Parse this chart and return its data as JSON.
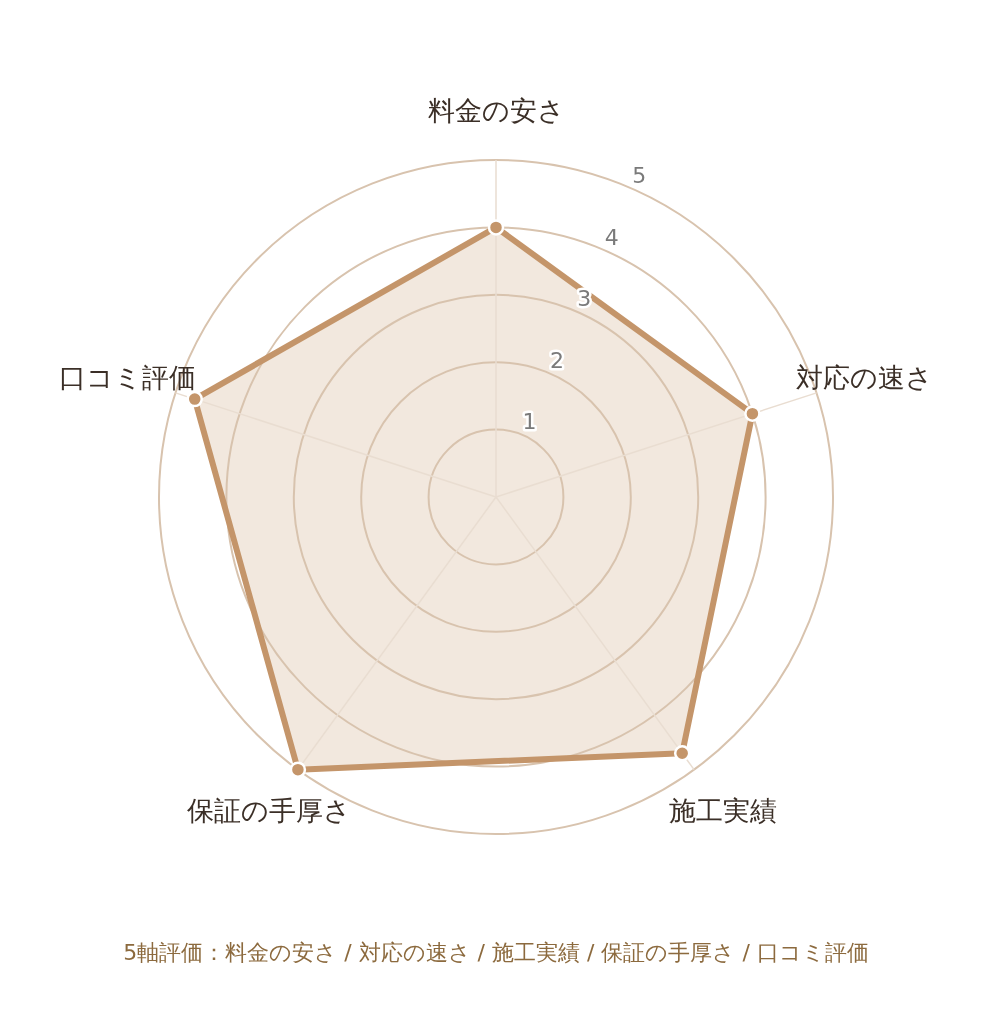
{
  "chart_data": {
    "type": "radar",
    "categories": [
      "料金の安さ",
      "対応の速さ",
      "施工実績",
      "保証の手厚さ",
      "口コミ評価"
    ],
    "series": [
      {
        "color": "#c4956a",
        "values": [
          4,
          4,
          4.7,
          5,
          4.7
        ]
      }
    ],
    "ylim": [
      0,
      5
    ],
    "yticks": [
      1,
      2,
      3,
      4,
      5
    ],
    "grid": true,
    "marker": "circle",
    "annotations": [
      "5軸評価：料金の安さ / 対応の速さ / 施工実績 / 保証の手厚さ / 口コミ評価"
    ]
  }
}
